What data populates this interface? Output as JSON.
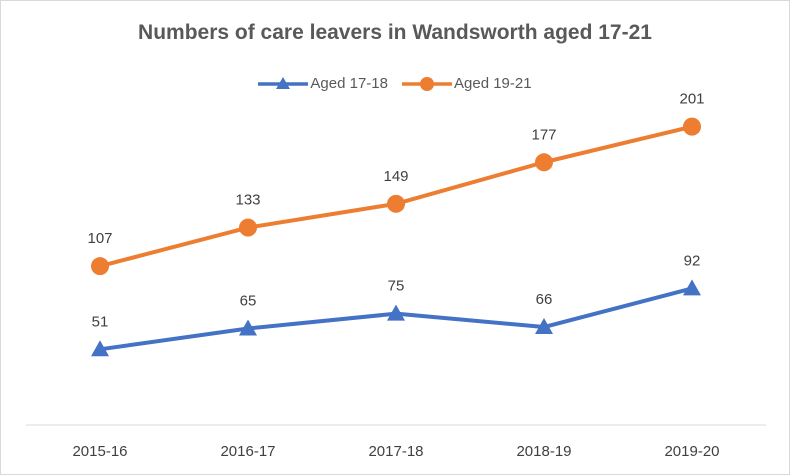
{
  "chart_data": {
    "type": "line",
    "title": "Numbers of care leavers in Wandsworth aged 17-21",
    "categories": [
      "2015-16",
      "2016-17",
      "2017-18",
      "2018-19",
      "2019-20"
    ],
    "series": [
      {
        "name": "Aged 17-18",
        "values": [
          51,
          65,
          75,
          66,
          92
        ],
        "color": "#4472c4",
        "marker": "triangle"
      },
      {
        "name": "Aged 19-21",
        "values": [
          107,
          133,
          149,
          177,
          201
        ],
        "color": "#ed7d31",
        "marker": "circle"
      }
    ],
    "xlabel": "",
    "ylabel": "",
    "ylim": [
      0,
      225
    ],
    "grid": false,
    "legend_position": "top"
  }
}
